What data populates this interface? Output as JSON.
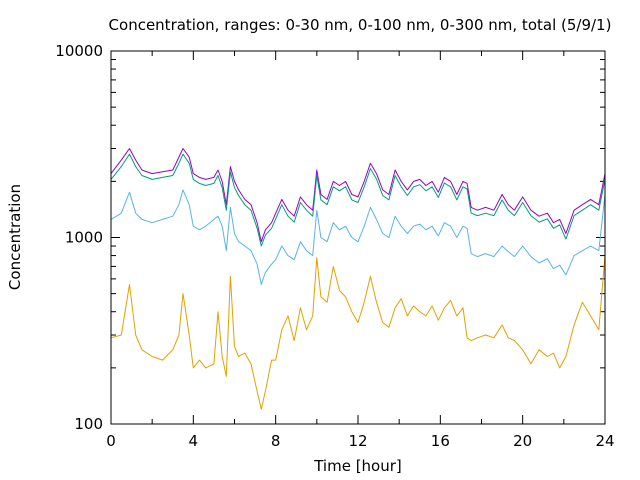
{
  "chart_data": {
    "type": "line",
    "title": "Concentration, ranges: 0-30 nm, 0-100 nm, 0-300 nm, total (5/9/1)",
    "xlabel": "Time [hour]",
    "ylabel": "Concentration",
    "xlim": [
      0,
      24
    ],
    "ylim": [
      100,
      10000
    ],
    "y_scale": "log",
    "grid": false,
    "x_ticks": [
      0,
      4,
      8,
      12,
      16,
      20,
      24
    ],
    "x_tick_labels": [
      "0",
      "4",
      "8",
      "12",
      "16",
      "20",
      "24"
    ],
    "y_ticks": [
      100,
      1000,
      10000
    ],
    "y_tick_labels": [
      "100",
      "1000",
      "10000"
    ],
    "series": [
      {
        "key": "total",
        "color": "#9400d3",
        "x": [
          0,
          0.5,
          0.9,
          1.2,
          1.5,
          2,
          2.5,
          3,
          3.3,
          3.5,
          3.8,
          4,
          4.3,
          4.6,
          5,
          5.2,
          5.4,
          5.6,
          5.8,
          6,
          6.2,
          6.5,
          6.8,
          7.1,
          7.3,
          7.5,
          7.8,
          8,
          8.3,
          8.6,
          8.9,
          9.2,
          9.5,
          9.8,
          10,
          10.2,
          10.5,
          10.8,
          11.1,
          11.4,
          11.7,
          12,
          12.3,
          12.6,
          12.9,
          13.2,
          13.5,
          13.8,
          14.1,
          14.4,
          14.7,
          15,
          15.3,
          15.6,
          15.9,
          16.2,
          16.5,
          16.8,
          17.1,
          17.3,
          17.5,
          17.8,
          18.2,
          18.6,
          19,
          19.3,
          19.6,
          20,
          20.4,
          20.8,
          21.2,
          21.5,
          21.8,
          22.1,
          22.5,
          22.9,
          23.3,
          23.7,
          24
        ],
        "values": [
          2200,
          2600,
          3000,
          2600,
          2300,
          2200,
          2250,
          2300,
          2700,
          3000,
          2700,
          2200,
          2100,
          2050,
          2100,
          2300,
          2000,
          1500,
          2400,
          2000,
          1800,
          1600,
          1500,
          1200,
          950,
          1100,
          1200,
          1350,
          1600,
          1400,
          1300,
          1650,
          1500,
          1400,
          2300,
          1700,
          1600,
          2000,
          1900,
          2000,
          1700,
          1650,
          2000,
          2500,
          2200,
          1800,
          1700,
          2300,
          2000,
          1800,
          2000,
          2050,
          1900,
          2000,
          1750,
          2100,
          2000,
          1700,
          2000,
          1950,
          1450,
          1400,
          1450,
          1400,
          1700,
          1500,
          1400,
          1650,
          1400,
          1300,
          1350,
          1200,
          1250,
          1050,
          1400,
          1500,
          1600,
          1500,
          2200
        ]
      },
      {
        "key": "0-300 nm",
        "color": "#009e73",
        "x": [
          0,
          0.5,
          0.9,
          1.2,
          1.5,
          2,
          2.5,
          3,
          3.3,
          3.5,
          3.8,
          4,
          4.3,
          4.6,
          5,
          5.2,
          5.4,
          5.6,
          5.8,
          6,
          6.2,
          6.5,
          6.8,
          7.1,
          7.3,
          7.5,
          7.8,
          8,
          8.3,
          8.6,
          8.9,
          9.2,
          9.5,
          9.8,
          10,
          10.2,
          10.5,
          10.8,
          11.1,
          11.4,
          11.7,
          12,
          12.3,
          12.6,
          12.9,
          13.2,
          13.5,
          13.8,
          14.1,
          14.4,
          14.7,
          15,
          15.3,
          15.6,
          15.9,
          16.2,
          16.5,
          16.8,
          17.1,
          17.3,
          17.5,
          17.8,
          18.2,
          18.6,
          19,
          19.3,
          19.6,
          20,
          20.4,
          20.8,
          21.2,
          21.5,
          21.8,
          22.1,
          22.5,
          22.9,
          23.3,
          23.7,
          24
        ],
        "values": [
          2050,
          2400,
          2800,
          2400,
          2150,
          2050,
          2100,
          2150,
          2500,
          2800,
          2500,
          2050,
          1950,
          1900,
          1950,
          2150,
          1850,
          1400,
          2250,
          1850,
          1680,
          1500,
          1400,
          1120,
          900,
          1030,
          1120,
          1260,
          1500,
          1300,
          1210,
          1540,
          1400,
          1300,
          2150,
          1590,
          1500,
          1870,
          1780,
          1870,
          1590,
          1540,
          1870,
          2340,
          2060,
          1680,
          1590,
          2150,
          1870,
          1680,
          1870,
          1920,
          1780,
          1870,
          1640,
          1960,
          1870,
          1590,
          1870,
          1820,
          1350,
          1310,
          1350,
          1310,
          1590,
          1400,
          1310,
          1540,
          1310,
          1210,
          1260,
          1120,
          1170,
          980,
          1310,
          1400,
          1500,
          1400,
          2050
        ]
      },
      {
        "key": "0-100 nm",
        "color": "#56b4e9",
        "x": [
          0,
          0.5,
          0.9,
          1.2,
          1.5,
          2,
          2.5,
          3,
          3.3,
          3.5,
          3.8,
          4,
          4.3,
          4.6,
          5,
          5.2,
          5.4,
          5.6,
          5.8,
          6,
          6.2,
          6.5,
          6.8,
          7.1,
          7.3,
          7.5,
          7.8,
          8,
          8.3,
          8.6,
          8.9,
          9.2,
          9.5,
          9.8,
          10,
          10.2,
          10.5,
          10.8,
          11.1,
          11.4,
          11.7,
          12,
          12.3,
          12.6,
          12.9,
          13.2,
          13.5,
          13.8,
          14.1,
          14.4,
          14.7,
          15,
          15.3,
          15.6,
          15.9,
          16.2,
          16.5,
          16.8,
          17.1,
          17.3,
          17.5,
          17.8,
          18.2,
          18.6,
          19,
          19.3,
          19.6,
          20,
          20.4,
          20.8,
          21.2,
          21.5,
          21.8,
          22.1,
          22.5,
          22.9,
          23.3,
          23.7,
          24
        ],
        "values": [
          1250,
          1350,
          1750,
          1350,
          1250,
          1200,
          1250,
          1300,
          1500,
          1800,
          1500,
          1150,
          1100,
          1150,
          1250,
          1300,
          1150,
          850,
          1450,
          1050,
          950,
          900,
          850,
          720,
          560,
          650,
          720,
          760,
          900,
          800,
          760,
          950,
          850,
          800,
          1400,
          1000,
          950,
          1200,
          1100,
          1150,
          1000,
          950,
          1150,
          1450,
          1250,
          1050,
          1000,
          1300,
          1150,
          1050,
          1150,
          1180,
          1100,
          1150,
          1020,
          1200,
          1150,
          1000,
          1150,
          1120,
          820,
          790,
          820,
          790,
          900,
          840,
          790,
          900,
          790,
          730,
          770,
          680,
          710,
          630,
          800,
          850,
          900,
          850,
          1700
        ]
      },
      {
        "key": "0-30 nm",
        "color": "#e69f00",
        "x": [
          0,
          0.5,
          0.9,
          1.2,
          1.5,
          2,
          2.5,
          3,
          3.3,
          3.5,
          3.8,
          4,
          4.3,
          4.6,
          5,
          5.2,
          5.4,
          5.6,
          5.8,
          6,
          6.2,
          6.5,
          6.8,
          7.1,
          7.3,
          7.5,
          7.8,
          8,
          8.3,
          8.6,
          8.9,
          9.2,
          9.5,
          9.8,
          10,
          10.2,
          10.5,
          10.8,
          11.1,
          11.4,
          11.7,
          12,
          12.3,
          12.6,
          12.9,
          13.2,
          13.5,
          13.8,
          14.1,
          14.4,
          14.7,
          15,
          15.3,
          15.6,
          15.9,
          16.2,
          16.5,
          16.8,
          17.1,
          17.3,
          17.5,
          17.8,
          18.2,
          18.6,
          19,
          19.3,
          19.6,
          20,
          20.4,
          20.8,
          21.2,
          21.5,
          21.8,
          22.1,
          22.5,
          22.9,
          23.3,
          23.7,
          24
        ],
        "values": [
          290,
          300,
          560,
          300,
          250,
          230,
          220,
          250,
          300,
          500,
          300,
          200,
          220,
          200,
          210,
          400,
          230,
          180,
          620,
          260,
          230,
          240,
          210,
          150,
          120,
          150,
          220,
          220,
          320,
          380,
          280,
          420,
          320,
          380,
          780,
          480,
          450,
          700,
          520,
          480,
          400,
          350,
          450,
          620,
          450,
          350,
          330,
          420,
          470,
          380,
          430,
          400,
          380,
          430,
          360,
          420,
          460,
          380,
          420,
          290,
          280,
          290,
          300,
          290,
          340,
          290,
          280,
          250,
          210,
          250,
          230,
          240,
          200,
          230,
          340,
          450,
          380,
          320,
          800
        ]
      }
    ]
  }
}
